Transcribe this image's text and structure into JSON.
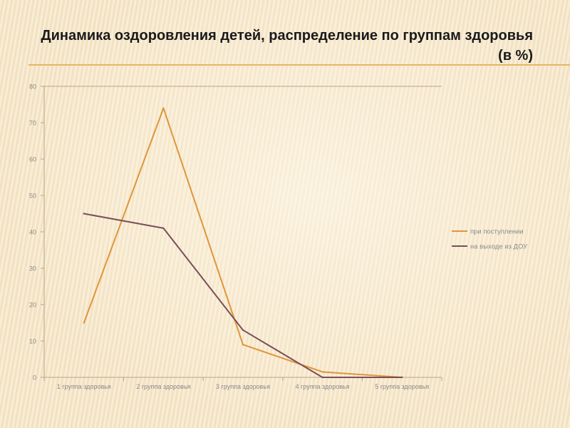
{
  "title": "Динамика оздоровления детей, распределение по группам здоровья (в %)",
  "chart_data": {
    "type": "line",
    "categories": [
      "1 группа здоровья",
      "2 группа здоровья",
      "3 группа здоровья",
      "4 группа здоровья",
      "5 группа здоровья"
    ],
    "series": [
      {
        "name": "при поступлении",
        "values": [
          15,
          74,
          9,
          1.5,
          0
        ],
        "color": "#e0953a"
      },
      {
        "name": "на выходе из ДОУ",
        "values": [
          45,
          41,
          13,
          0,
          0
        ],
        "color": "#7a4f5a"
      }
    ],
    "ylim": [
      0,
      80
    ],
    "yticks": [
      "0",
      "10",
      "20",
      "30",
      "40",
      "50",
      "60",
      "70",
      "80"
    ],
    "grid": false,
    "legend": "right"
  }
}
